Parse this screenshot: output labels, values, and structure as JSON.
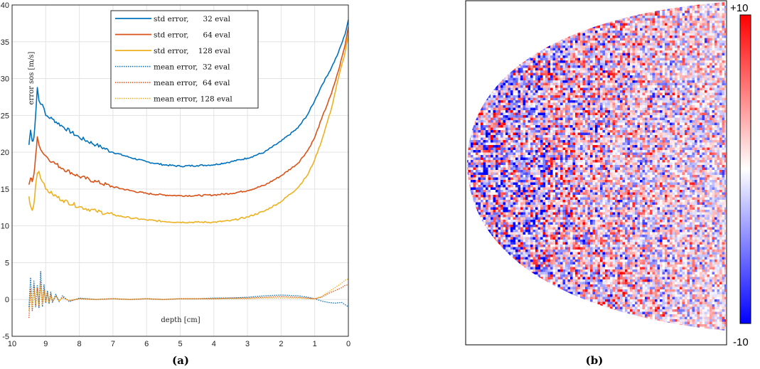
{
  "caption_a": "(a)",
  "caption_b": "(b)",
  "chart_data": [
    {
      "type": "line",
      "xlabel": "depth [cm]",
      "ylabel": "error sos [m/s]",
      "xlim": [
        10,
        0
      ],
      "ylim": [
        -5,
        40
      ],
      "x_reversed": true,
      "grid": true,
      "legend_position": "top-center",
      "x_ticks": [
        10,
        9,
        8,
        7,
        6,
        5,
        4,
        3,
        2,
        1,
        0
      ],
      "y_ticks": [
        -5,
        0,
        5,
        10,
        15,
        20,
        25,
        30,
        35,
        40
      ],
      "colors": {
        "c32": "#0072BD",
        "c64": "#D95319",
        "c128": "#EDB120"
      },
      "series": [
        {
          "name": "std error,      32 eval",
          "style": "solid",
          "color": "#0072BD",
          "x": [
            9.5,
            9.45,
            9.4,
            9.35,
            9.3,
            9.25,
            9.2,
            9.1,
            9.0,
            8.8,
            8.5,
            8,
            7.5,
            7,
            6.5,
            6,
            5.5,
            5,
            4.5,
            4,
            3.5,
            3,
            2.5,
            2,
            1.5,
            1.2,
            1,
            0.8,
            0.5,
            0.3,
            0.1,
            0
          ],
          "y": [
            21,
            23,
            21.5,
            22,
            25,
            28.8,
            27,
            26.5,
            25,
            24.5,
            23.5,
            22,
            21,
            20,
            19.3,
            18.7,
            18.3,
            18.1,
            18.2,
            18.3,
            18.7,
            19.2,
            20,
            21.5,
            23.3,
            25.2,
            27,
            29,
            31.5,
            33.5,
            36,
            38
          ]
        },
        {
          "name": "std error,      64 eval",
          "style": "solid",
          "color": "#D95319",
          "x": [
            9.5,
            9.45,
            9.4,
            9.35,
            9.3,
            9.25,
            9.2,
            9.1,
            9.0,
            8.8,
            8.5,
            8,
            7.5,
            7,
            6.5,
            6,
            5.5,
            5,
            4.5,
            4,
            3.5,
            3,
            2.5,
            2,
            1.5,
            1.2,
            1,
            0.8,
            0.5,
            0.3,
            0.1,
            0
          ],
          "y": [
            15.6,
            16.5,
            16,
            17,
            19.5,
            22.1,
            21,
            20,
            19.5,
            18.7,
            17.8,
            16.7,
            16,
            15.3,
            14.8,
            14.4,
            14.2,
            14.1,
            14.1,
            14.2,
            14.4,
            14.8,
            15.5,
            16.8,
            18.5,
            20.3,
            22,
            24.5,
            28,
            31,
            34.5,
            37
          ]
        },
        {
          "name": "std error,    128 eval",
          "style": "solid",
          "color": "#EDB120",
          "x": [
            9.5,
            9.45,
            9.4,
            9.35,
            9.3,
            9.25,
            9.2,
            9.1,
            9.0,
            8.8,
            8.5,
            8,
            7.5,
            7,
            6.5,
            6,
            5.5,
            5,
            4.5,
            4,
            3.5,
            3,
            2.5,
            2,
            1.5,
            1.2,
            1,
            0.8,
            0.5,
            0.3,
            0.1,
            0
          ],
          "y": [
            14,
            12.7,
            12.1,
            13,
            15.5,
            17.2,
            17.4,
            16,
            15,
            14.3,
            13.5,
            12.6,
            12,
            11.5,
            11.1,
            10.8,
            10.6,
            10.5,
            10.5,
            10.5,
            10.7,
            11.2,
            12,
            13.3,
            15.2,
            17,
            19,
            21.5,
            26,
            30,
            33.5,
            36
          ]
        },
        {
          "name": "mean error,  32 eval",
          "style": "dotted",
          "color": "#0072BD",
          "x": [
            9.5,
            9.45,
            9.4,
            9.35,
            9.3,
            9.25,
            9.2,
            9.15,
            9.1,
            9.05,
            9.0,
            8.95,
            8.9,
            8.85,
            8.8,
            8.7,
            8.6,
            8.5,
            8.3,
            8,
            7.5,
            7,
            6.5,
            6,
            5.5,
            5,
            4.5,
            4,
            3.5,
            3,
            2.5,
            2,
            1.5,
            1.2,
            1,
            0.8,
            0.6,
            0.4,
            0.2,
            0.1,
            0
          ],
          "y": [
            -1,
            3,
            -1.5,
            2.5,
            -1,
            2,
            -1.2,
            3.8,
            -1,
            2,
            -0.5,
            1.2,
            -0.6,
            1,
            -0.4,
            0.7,
            -0.3,
            0.5,
            -0.3,
            0.2,
            0,
            0.1,
            0,
            0.1,
            0,
            0.1,
            0.1,
            0.2,
            0.2,
            0.3,
            0.5,
            0.6,
            0.5,
            0.3,
            0.1,
            -0.2,
            -0.4,
            -0.5,
            -0.4,
            -0.7,
            -1
          ]
        },
        {
          "name": "mean error,  64 eval",
          "style": "dotted",
          "color": "#D95319",
          "x": [
            9.5,
            9.45,
            9.4,
            9.35,
            9.3,
            9.25,
            9.2,
            9.15,
            9.1,
            9.05,
            9.0,
            8.95,
            8.9,
            8.85,
            8.8,
            8.7,
            8.6,
            8.5,
            8.3,
            8,
            7.5,
            7,
            6.5,
            6,
            5.5,
            5,
            4.5,
            4,
            3.5,
            3,
            2.5,
            2,
            1.5,
            1.2,
            1,
            0.8,
            0.6,
            0.4,
            0.2,
            0.1,
            0
          ],
          "y": [
            -2.5,
            1.5,
            -1.5,
            2,
            -0.8,
            1.5,
            -1,
            2.5,
            -0.8,
            1.5,
            -0.4,
            1,
            -0.5,
            0.8,
            -0.3,
            0.5,
            -0.2,
            0.3,
            -0.2,
            0.1,
            0,
            0.1,
            0,
            0.1,
            0,
            0.1,
            0.1,
            0.1,
            0.2,
            0.2,
            0.3,
            0.4,
            0.3,
            0.2,
            0.1,
            0.3,
            0.8,
            1.2,
            1.6,
            1.9,
            2
          ]
        },
        {
          "name": "mean error, 128 eval",
          "style": "dotted",
          "color": "#EDB120",
          "x": [
            9.5,
            9.45,
            9.4,
            9.35,
            9.3,
            9.25,
            9.2,
            9.15,
            9.1,
            9.05,
            9.0,
            8.95,
            8.9,
            8.85,
            8.8,
            8.7,
            8.6,
            8.5,
            8.3,
            8,
            7.5,
            7,
            6.5,
            6,
            5.5,
            5,
            4.5,
            4,
            3.5,
            3,
            2.5,
            2,
            1.5,
            1.2,
            1,
            0.8,
            0.6,
            0.4,
            0.2,
            0.1,
            0
          ],
          "y": [
            -1.5,
            1,
            -1.2,
            1.5,
            -0.6,
            1,
            -0.8,
            2,
            -0.6,
            1.2,
            -0.3,
            0.8,
            -0.4,
            0.6,
            -0.2,
            0.4,
            -0.2,
            0.2,
            -0.1,
            0.1,
            0,
            0.1,
            0,
            0.1,
            0,
            0.1,
            0.1,
            0.1,
            0.1,
            0.1,
            0.2,
            0.2,
            0.2,
            0.1,
            0.1,
            0.4,
            1,
            1.6,
            2.2,
            2.6,
            2.8
          ]
        }
      ]
    },
    {
      "type": "heatmap",
      "shape": "semi-elliptical sector, apex left",
      "colormap": [
        "#0000FF",
        "#FFFFFF",
        "#FF0000"
      ],
      "colorbar": {
        "min_label": "-10",
        "max_label": "+10",
        "min": -10,
        "max": 10
      }
    }
  ]
}
